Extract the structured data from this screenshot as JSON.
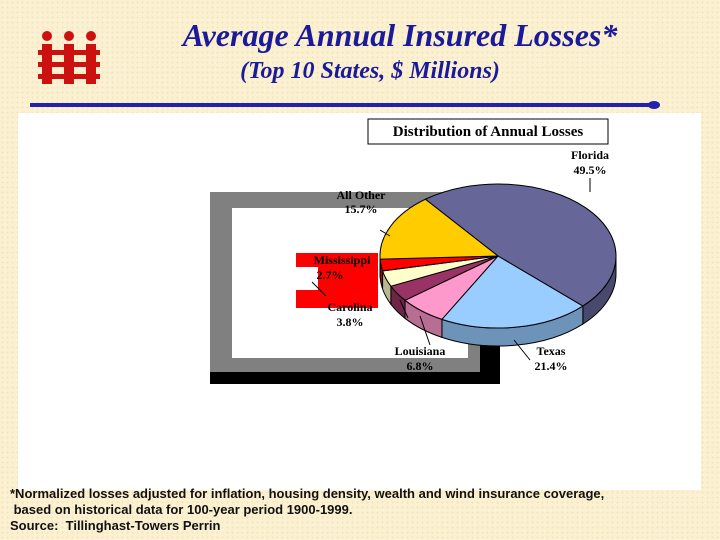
{
  "header": {
    "title": "Average Annual Insured Losses*",
    "subtitle": "(Top 10 States, $ Millions)",
    "logo_text": "iii",
    "colors": {
      "title": "#1a1a9a",
      "logo": "#cc1111",
      "rule": "#2222aa"
    }
  },
  "chart_data": {
    "type": "pie",
    "title": "Distribution of Annual Losses",
    "slices": [
      {
        "label": "Florida",
        "pct_label": "49.5%",
        "value": 49.5,
        "color": "#666699"
      },
      {
        "label": "Texas",
        "pct_label": "21.4%",
        "value": 21.4,
        "color": "#99ccff"
      },
      {
        "label": "Louisiana",
        "pct_label": "6.8%",
        "value": 6.8,
        "color": "#ff99cc"
      },
      {
        "label": "Carolina",
        "pct_label": "3.8%",
        "value": 3.8,
        "color": "#993366"
      },
      {
        "label": "",
        "pct_label": "",
        "value": 3.7,
        "color": "#ffffcc"
      },
      {
        "label": "Mississippi",
        "pct_label": "2.7%",
        "value": 2.7,
        "color": "#ff0000"
      },
      {
        "label": "All Other",
        "pct_label": "15.7%",
        "value": 15.7,
        "color": "#ffcc00"
      }
    ]
  },
  "footnote": {
    "line1": "*Normalized losses adjusted for inflation, housing density, wealth and wind insurance coverage,",
    "line2": " based on historical data for 100-year period 1900-1999.",
    "line3": "Source:  Tillinghast-Towers Perrin"
  }
}
